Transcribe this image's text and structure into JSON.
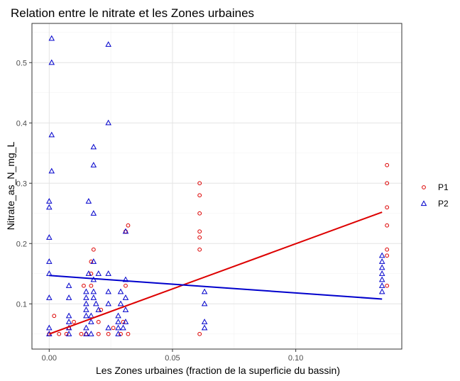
{
  "chart_data": {
    "type": "scatter",
    "title": "Relation entre le nitrate et les Zones urbaines",
    "xlabel": "Les Zones urbaines (fraction de la superficie du bassin)",
    "ylabel": "Nitrate_as_N_mg_L",
    "xlim": [
      -0.007,
      0.143
    ],
    "ylim": [
      0.025,
      0.565
    ],
    "x_ticks": [
      0.0,
      0.05,
      0.1
    ],
    "x_tick_labels": [
      "0.00",
      "0.05",
      "0.10"
    ],
    "y_ticks": [
      0.1,
      0.2,
      0.3,
      0.4,
      0.5
    ],
    "y_tick_labels": [
      "0.1",
      "0.2",
      "0.3",
      "0.4",
      "0.5"
    ],
    "grid": true,
    "legend_position": "right",
    "series": [
      {
        "name": "P1",
        "color": "#dd0000",
        "marker": "circle",
        "points": [
          [
            0.0,
            0.05
          ],
          [
            0.002,
            0.08
          ],
          [
            0.004,
            0.05
          ],
          [
            0.007,
            0.05
          ],
          [
            0.008,
            0.06
          ],
          [
            0.01,
            0.07
          ],
          [
            0.013,
            0.05
          ],
          [
            0.014,
            0.13
          ],
          [
            0.015,
            0.05
          ],
          [
            0.017,
            0.13
          ],
          [
            0.017,
            0.15
          ],
          [
            0.017,
            0.17
          ],
          [
            0.018,
            0.19
          ],
          [
            0.02,
            0.05
          ],
          [
            0.02,
            0.07
          ],
          [
            0.021,
            0.09
          ],
          [
            0.024,
            0.05
          ],
          [
            0.026,
            0.06
          ],
          [
            0.029,
            0.05
          ],
          [
            0.03,
            0.07
          ],
          [
            0.031,
            0.13
          ],
          [
            0.031,
            0.22
          ],
          [
            0.032,
            0.23
          ],
          [
            0.032,
            0.05
          ],
          [
            0.061,
            0.05
          ],
          [
            0.061,
            0.19
          ],
          [
            0.061,
            0.21
          ],
          [
            0.061,
            0.22
          ],
          [
            0.061,
            0.25
          ],
          [
            0.061,
            0.28
          ],
          [
            0.061,
            0.3
          ],
          [
            0.137,
            0.13
          ],
          [
            0.137,
            0.18
          ],
          [
            0.137,
            0.19
          ],
          [
            0.137,
            0.23
          ],
          [
            0.137,
            0.26
          ],
          [
            0.137,
            0.3
          ],
          [
            0.137,
            0.33
          ]
        ],
        "trend": [
          [
            0.0,
            0.05
          ],
          [
            0.135,
            0.252
          ]
        ]
      },
      {
        "name": "P2",
        "color": "#0000cc",
        "marker": "triangle",
        "points": [
          [
            0.0,
            0.05
          ],
          [
            0.0,
            0.06
          ],
          [
            0.0,
            0.11
          ],
          [
            0.0,
            0.15
          ],
          [
            0.0,
            0.17
          ],
          [
            0.0,
            0.21
          ],
          [
            0.0,
            0.26
          ],
          [
            0.0,
            0.27
          ],
          [
            0.001,
            0.32
          ],
          [
            0.001,
            0.38
          ],
          [
            0.001,
            0.5
          ],
          [
            0.001,
            0.54
          ],
          [
            0.008,
            0.05
          ],
          [
            0.008,
            0.06
          ],
          [
            0.008,
            0.07
          ],
          [
            0.008,
            0.08
          ],
          [
            0.008,
            0.11
          ],
          [
            0.008,
            0.13
          ],
          [
            0.015,
            0.05
          ],
          [
            0.015,
            0.06
          ],
          [
            0.015,
            0.08
          ],
          [
            0.015,
            0.09
          ],
          [
            0.015,
            0.1
          ],
          [
            0.015,
            0.11
          ],
          [
            0.015,
            0.12
          ],
          [
            0.016,
            0.15
          ],
          [
            0.016,
            0.27
          ],
          [
            0.017,
            0.05
          ],
          [
            0.017,
            0.07
          ],
          [
            0.017,
            0.08
          ],
          [
            0.018,
            0.11
          ],
          [
            0.018,
            0.12
          ],
          [
            0.018,
            0.14
          ],
          [
            0.018,
            0.17
          ],
          [
            0.018,
            0.25
          ],
          [
            0.018,
            0.33
          ],
          [
            0.018,
            0.36
          ],
          [
            0.019,
            0.1
          ],
          [
            0.02,
            0.15
          ],
          [
            0.02,
            0.09
          ],
          [
            0.024,
            0.06
          ],
          [
            0.024,
            0.1
          ],
          [
            0.024,
            0.12
          ],
          [
            0.024,
            0.15
          ],
          [
            0.024,
            0.4
          ],
          [
            0.024,
            0.53
          ],
          [
            0.028,
            0.05
          ],
          [
            0.028,
            0.06
          ],
          [
            0.028,
            0.07
          ],
          [
            0.028,
            0.08
          ],
          [
            0.029,
            0.1
          ],
          [
            0.029,
            0.12
          ],
          [
            0.03,
            0.06
          ],
          [
            0.031,
            0.07
          ],
          [
            0.031,
            0.09
          ],
          [
            0.031,
            0.11
          ],
          [
            0.031,
            0.14
          ],
          [
            0.031,
            0.22
          ],
          [
            0.063,
            0.06
          ],
          [
            0.063,
            0.07
          ],
          [
            0.063,
            0.1
          ],
          [
            0.063,
            0.12
          ],
          [
            0.135,
            0.12
          ],
          [
            0.135,
            0.13
          ],
          [
            0.135,
            0.14
          ],
          [
            0.135,
            0.15
          ],
          [
            0.135,
            0.16
          ],
          [
            0.135,
            0.17
          ],
          [
            0.135,
            0.18
          ]
        ],
        "trend": [
          [
            0.0,
            0.147
          ],
          [
            0.135,
            0.108
          ]
        ]
      }
    ]
  }
}
